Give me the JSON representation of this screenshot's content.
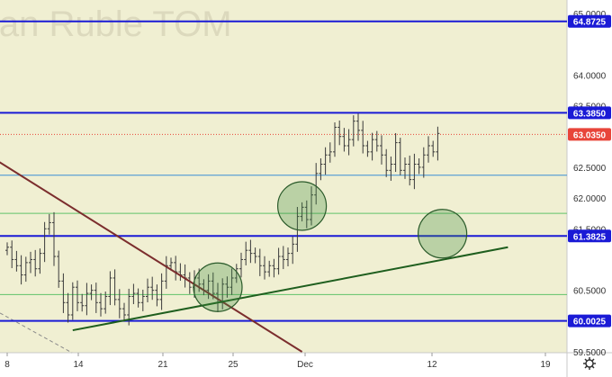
{
  "chart_data": {
    "type": "candlestick",
    "watermark": "ian Ruble TOM",
    "ylim": [
      59.5,
      65.0
    ],
    "y_ticks": [
      "65.0000",
      "64.0000",
      "63.5000",
      "62.5000",
      "62.0000",
      "61.5000",
      "60.5000",
      "59.5000"
    ],
    "x_ticks": [
      "8",
      "14",
      "21",
      "25",
      "Dec",
      "12",
      "19"
    ],
    "horizontal_levels": [
      {
        "value": 64.8725,
        "label": "64.8725",
        "color": "#1a1ad6"
      },
      {
        "value": 63.385,
        "label": "63.3850",
        "color": "#1a1ad6"
      },
      {
        "value": 61.3825,
        "label": "61.3825",
        "color": "#1a1ad6"
      },
      {
        "value": 60.0025,
        "label": "60.0025",
        "color": "#1a1ad6"
      }
    ],
    "thin_levels": [
      62.37,
      61.75,
      60.43
    ],
    "current_price": {
      "value": 63.035,
      "label": "63.0350",
      "color": "#e8453a"
    },
    "trendlines": [
      {
        "name": "resistance",
        "color": "#7b2d2d",
        "from_bar": -2,
        "from_value": 62.6,
        "to_bar": 63,
        "to_value": 59.5
      },
      {
        "name": "support",
        "color": "#1e5e1e",
        "from_bar": 14,
        "from_value": 59.85,
        "to_bar": 107,
        "to_value": 61.2
      }
    ],
    "highlight_circles": [
      {
        "bar": 45,
        "value": 60.55
      },
      {
        "bar": 63,
        "value": 61.87
      },
      {
        "bar": 93,
        "value": 61.42
      }
    ],
    "closes": [
      61.2,
      61.0,
      60.9,
      60.75,
      60.95,
      61.0,
      60.85,
      61.1,
      61.5,
      61.6,
      61.05,
      60.65,
      60.3,
      60.1,
      60.55,
      60.3,
      60.25,
      60.45,
      60.5,
      60.3,
      60.2,
      60.4,
      60.7,
      60.35,
      60.2,
      60.1,
      60.4,
      60.45,
      60.3,
      60.4,
      60.55,
      60.5,
      60.35,
      60.65,
      60.9,
      60.95,
      60.8,
      60.75,
      60.7,
      60.55,
      60.7,
      60.6,
      60.5,
      60.65,
      60.45,
      60.3,
      60.6,
      60.55,
      60.7,
      60.85,
      61.0,
      61.15,
      61.1,
      61.05,
      60.9,
      60.8,
      60.9,
      60.85,
      61.05,
      61.0,
      61.1,
      61.25,
      61.7,
      61.85,
      61.65,
      62.05,
      62.4,
      62.55,
      62.7,
      62.75,
      63.15,
      63.0,
      62.85,
      62.95,
      63.25,
      63.1,
      62.85,
      62.75,
      62.95,
      62.85,
      62.7,
      62.45,
      62.55,
      62.9,
      62.45,
      62.55,
      62.3,
      62.55,
      62.5,
      62.7,
      62.85,
      62.75,
      63.05
    ]
  }
}
